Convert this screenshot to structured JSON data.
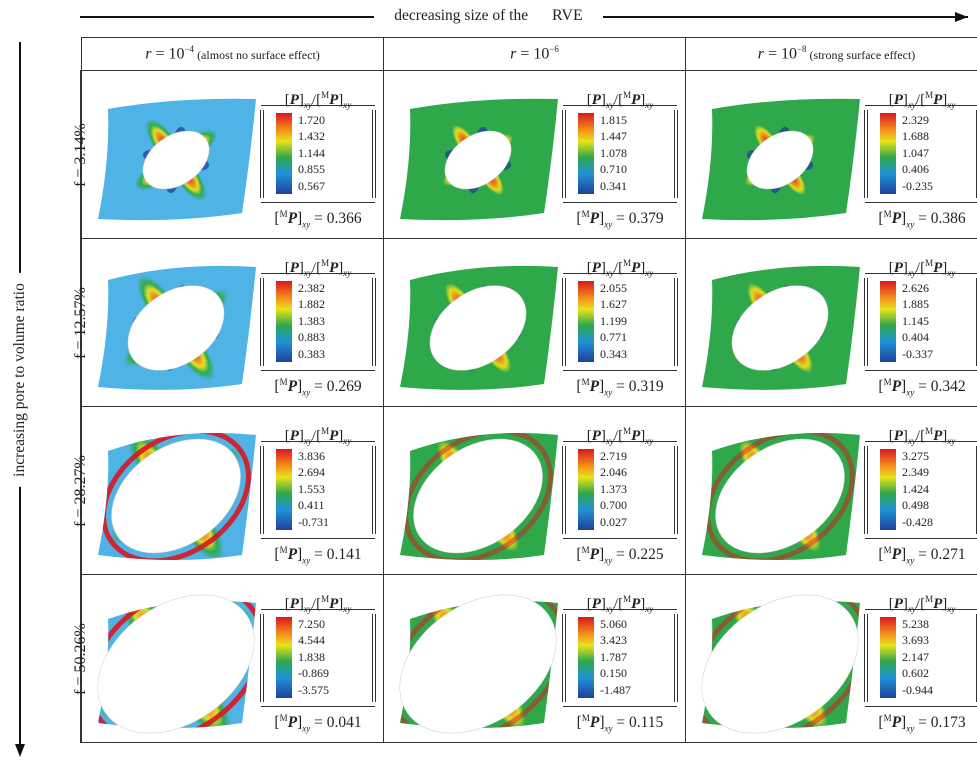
{
  "header": {
    "top_caption": "decreasing size of the",
    "top_caption_rve": "RVE",
    "left_caption": "increasing pore to volume ratio"
  },
  "columns": [
    {
      "label": "r = 10⁻⁴",
      "note": "(almost no surface effect)"
    },
    {
      "label": "r = 10⁻⁶",
      "note": ""
    },
    {
      "label": "r = 10⁻⁸",
      "note": "(strong surface effect)"
    }
  ],
  "rows": [
    {
      "label": "f = 3.14%",
      "cells": [
        {
          "ticks": [
            "1.720",
            "1.432",
            "1.144",
            "0.855",
            "0.567"
          ],
          "mp": "0.366",
          "hole": 0.11
        },
        {
          "ticks": [
            "1.815",
            "1.447",
            "1.078",
            "0.710",
            "0.341"
          ],
          "mp": "0.379",
          "hole": 0.11
        },
        {
          "ticks": [
            "2.329",
            "1.688",
            "1.047",
            "0.406",
            "-0.235"
          ],
          "mp": "0.386",
          "hole": 0.11
        }
      ]
    },
    {
      "label": "f = 12.57%",
      "cells": [
        {
          "ticks": [
            "2.382",
            "1.882",
            "1.383",
            "0.883",
            "0.383"
          ],
          "mp": "0.269",
          "hole": 0.22
        },
        {
          "ticks": [
            "2.055",
            "1.627",
            "1.199",
            "0.771",
            "0.343"
          ],
          "mp": "0.319",
          "hole": 0.22
        },
        {
          "ticks": [
            "2.626",
            "1.885",
            "1.145",
            "0.404",
            "-0.337"
          ],
          "mp": "0.342",
          "hole": 0.22
        }
      ]
    },
    {
      "label": "f = 28.27%",
      "cells": [
        {
          "ticks": [
            "3.836",
            "2.694",
            "1.553",
            "0.411",
            "-0.731"
          ],
          "mp": "0.141",
          "hole": 0.34
        },
        {
          "ticks": [
            "2.719",
            "2.046",
            "1.373",
            "0.700",
            "0.027"
          ],
          "mp": "0.225",
          "hole": 0.34
        },
        {
          "ticks": [
            "3.275",
            "2.349",
            "1.424",
            "0.498",
            "-0.428"
          ],
          "mp": "0.271",
          "hole": 0.34
        }
      ]
    },
    {
      "label": "f = 50.26%",
      "cells": [
        {
          "ticks": [
            "7.250",
            "4.544",
            "1.838",
            "-0.869",
            "-3.575"
          ],
          "mp": "0.041",
          "hole": 0.44
        },
        {
          "ticks": [
            "5.060",
            "3.423",
            "1.787",
            "0.150",
            "-1.487"
          ],
          "mp": "0.115",
          "hole": 0.44
        },
        {
          "ticks": [
            "5.238",
            "3.693",
            "2.147",
            "0.602",
            "-0.944"
          ],
          "mp": "0.173",
          "hole": 0.44
        }
      ]
    }
  ],
  "legend_title": "[P]xy/[MP]xy",
  "legend_mp_prefix": "[MP]xy = ",
  "colors": {
    "red": "#d91520",
    "orange": "#f28a1a",
    "yellow": "#ece21e",
    "green": "#2ea84a",
    "cyan": "#1f93d8",
    "blue": "#1f3f9a",
    "pale_blue": "#4fb3e6"
  }
}
